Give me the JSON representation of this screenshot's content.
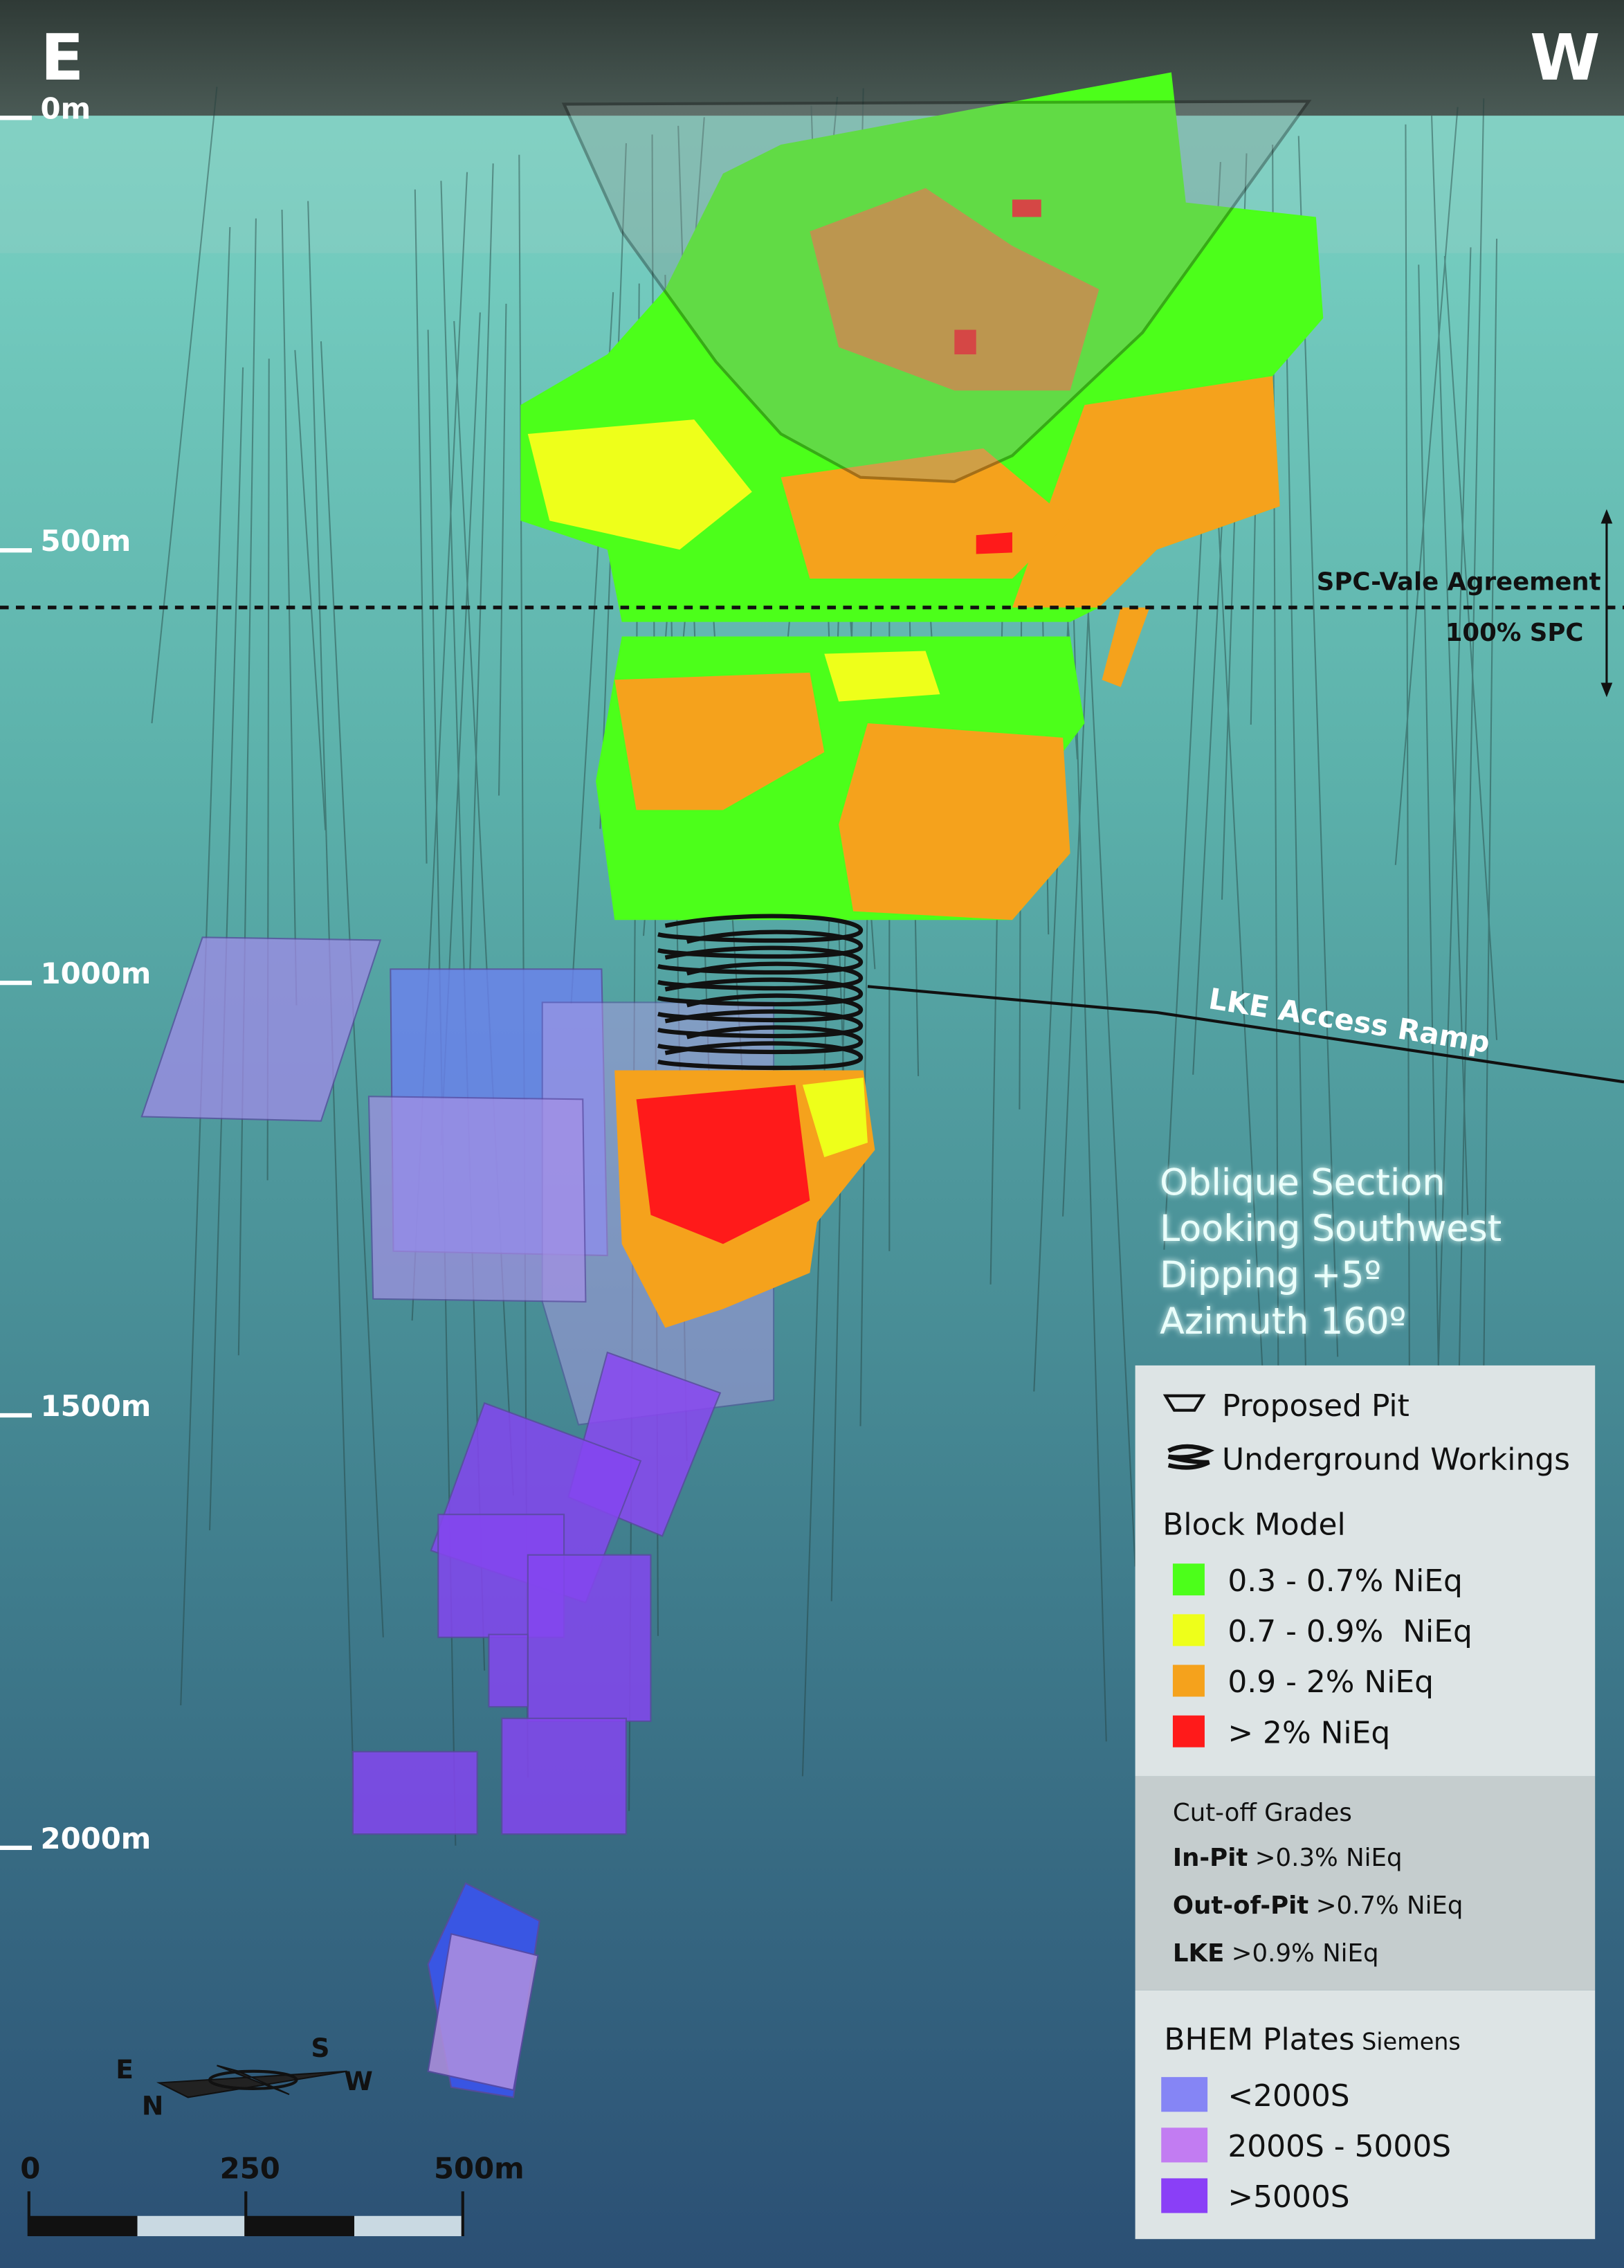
{
  "header": {
    "left_direction": "E",
    "right_direction": "W"
  },
  "depth_labels": [
    "0m",
    "500m",
    "1000m",
    "1500m",
    "2000m"
  ],
  "boundary": {
    "label": "SPC-Vale Agreement",
    "below_label": "100% SPC"
  },
  "ramp_label": "LKE Access Ramp",
  "section_info": [
    "Oblique Section",
    "Looking Southwest",
    "Dipping +5º",
    "Azimuth 160º"
  ],
  "legend": {
    "features": [
      {
        "label": "Proposed Pit"
      },
      {
        "label": "Underground Workings"
      }
    ],
    "block_model": {
      "title": "Block Model",
      "items": [
        {
          "label": "0.3 - 0.7% NiEq",
          "color": "#4cff1a"
        },
        {
          "label": "0.7 - 0.9%  NiEq",
          "color": "#eeff1a"
        },
        {
          "label": "0.9 - 2% NiEq",
          "color": "#f5a21c"
        },
        {
          "label": "> 2% NiEq",
          "color": "#ff1a1a"
        }
      ]
    }
  },
  "cutoff_grades": {
    "title": "Cut-off Grades",
    "rows": [
      {
        "name": "In-Pit",
        "value": ">0.3% NiEq"
      },
      {
        "name": "Out-of-Pit",
        "value": ">0.7% NiEq"
      },
      {
        "name": "LKE",
        "value": ">0.9% NiEq"
      }
    ]
  },
  "bhem_plates": {
    "title": "BHEM Plates",
    "unit": "Siemens",
    "items": [
      {
        "label": "<2000S",
        "color": "#8585f5"
      },
      {
        "label": "2000S - 5000S",
        "color": "#c27cf2"
      },
      {
        "label": ">5000S",
        "color": "#8a3ff7"
      }
    ]
  },
  "compass": {
    "labels": [
      "E",
      "S",
      "W",
      "N"
    ]
  },
  "scale_bar": {
    "labels": [
      "0",
      "250",
      "500m"
    ]
  }
}
